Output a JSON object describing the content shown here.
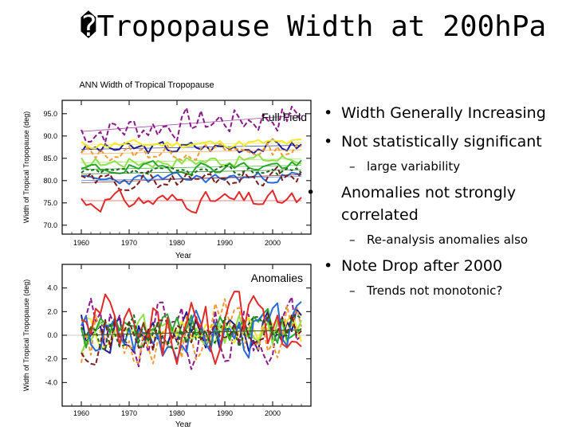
{
  "slide": {
    "title": "�Tropopause Width at 200hPa"
  },
  "bullets": [
    {
      "level": 1,
      "text": "Width Generally Increasing"
    },
    {
      "level": 1,
      "text": "Not statistically significant"
    },
    {
      "level": 2,
      "text": "large variability"
    },
    {
      "level": 1,
      "text": "Anomalies not strongly correlated"
    },
    {
      "level": 2,
      "text": "Re-analysis anomalies also"
    },
    {
      "level": 1,
      "text": "Note Drop after 2000"
    },
    {
      "level": 2,
      "text": "Trends not monotonic?"
    }
  ],
  "bullet_glyph": "•",
  "sub_glyph": "–",
  "chart_data": [
    {
      "type": "line",
      "title": "ANN Width of Tropical Tropopause",
      "panel_label": "Full Field",
      "xlabel": "Year",
      "ylabel": "Width of Tropical Tropopause (deg)",
      "xlim": [
        1956,
        2008
      ],
      "ylim": [
        68.0,
        98.0
      ],
      "xticks": [
        1960,
        1970,
        1980,
        1990,
        2000
      ],
      "yticks": [
        70.0,
        75.0,
        80.0,
        85.0,
        90.0,
        95.0
      ],
      "ytick_labels": [
        "70.0",
        "75.0",
        "80.0",
        "85.0",
        "90.0",
        "95.0"
      ],
      "series": [
        {
          "name": "dark blue",
          "color": "#1c1c8c",
          "dash": "",
          "start": 1960,
          "end": 2006,
          "base": 87.0,
          "trend": 0.02,
          "amp": 1.4,
          "seed": 3
        },
        {
          "name": "purple",
          "color": "#8a1a8a",
          "dash": "6,3",
          "start": 1960,
          "end": 2006,
          "base": 91.0,
          "trend": 0.08,
          "amp": 3.2,
          "seed": 7
        },
        {
          "name": "yellow",
          "color": "#f2ea28",
          "dash": "",
          "start": 1960,
          "end": 2006,
          "base": 88.0,
          "trend": 0.01,
          "amp": 0.9,
          "seed": 11
        },
        {
          "name": "orange",
          "color": "#f49a32",
          "dash": "5,3",
          "start": 1960,
          "end": 2006,
          "base": 86.0,
          "trend": 0.02,
          "amp": 1.6,
          "seed": 13
        },
        {
          "name": "light green",
          "color": "#8fe04a",
          "dash": "",
          "start": 1960,
          "end": 2006,
          "base": 84.0,
          "trend": 0.02,
          "amp": 1.3,
          "seed": 17
        },
        {
          "name": "green",
          "color": "#28a828",
          "dash": "",
          "start": 1960,
          "end": 2006,
          "base": 82.5,
          "trend": 0.02,
          "amp": 1.2,
          "seed": 19
        },
        {
          "name": "blue",
          "color": "#2a6ad8",
          "dash": "",
          "start": 1960,
          "end": 2006,
          "base": 80.0,
          "trend": 0.02,
          "amp": 1.1,
          "seed": 23
        },
        {
          "name": "brown",
          "color": "#7a1c1c",
          "dash": "6,3",
          "start": 1960,
          "end": 2006,
          "base": 79.5,
          "trend": 0.04,
          "amp": 1.8,
          "seed": 29
        },
        {
          "name": "red",
          "color": "#e02a2a",
          "dash": "",
          "start": 1960,
          "end": 2006,
          "base": 75.5,
          "trend": 0.0,
          "amp": 2.0,
          "seed": 31
        },
        {
          "name": "dark green",
          "color": "#1a6a1a",
          "dash": "4,3",
          "start": 1960,
          "end": 2006,
          "base": 81.5,
          "trend": 0.02,
          "amp": 1.0,
          "seed": 37
        }
      ]
    },
    {
      "type": "line",
      "title": "",
      "panel_label": "Anomalies",
      "xlabel": "Year",
      "ylabel": "Width of Tropical Tropopause (deg)",
      "xlim": [
        1956,
        2008
      ],
      "ylim": [
        -6.0,
        6.0
      ],
      "xticks": [
        1960,
        1970,
        1980,
        1990,
        2000
      ],
      "yticks": [
        -4.0,
        -2.0,
        0.0,
        2.0,
        4.0
      ],
      "ytick_labels": [
        "-4.0",
        "-2.0",
        "0.0",
        "2.0",
        "4.0"
      ],
      "series": [
        {
          "name": "dark blue",
          "color": "#1c1c8c",
          "dash": "",
          "start": 1960,
          "end": 2006,
          "base": 0,
          "trend": 0.01,
          "amp": 1.8,
          "seed": 41
        },
        {
          "name": "purple",
          "color": "#8a1a8a",
          "dash": "6,3",
          "start": 1960,
          "end": 2006,
          "base": 0,
          "trend": 0.01,
          "amp": 2.6,
          "seed": 43
        },
        {
          "name": "yellow",
          "color": "#f2ea28",
          "dash": "",
          "start": 1960,
          "end": 2006,
          "base": 0,
          "trend": 0.01,
          "amp": 1.2,
          "seed": 47
        },
        {
          "name": "orange",
          "color": "#f49a32",
          "dash": "5,3",
          "start": 1960,
          "end": 2006,
          "base": 0,
          "trend": 0.01,
          "amp": 2.4,
          "seed": 53
        },
        {
          "name": "light green",
          "color": "#8fe04a",
          "dash": "",
          "start": 1960,
          "end": 2006,
          "base": 0,
          "trend": 0.01,
          "amp": 1.6,
          "seed": 59
        },
        {
          "name": "green",
          "color": "#28a828",
          "dash": "",
          "start": 1960,
          "end": 2006,
          "base": 0,
          "trend": 0.01,
          "amp": 1.5,
          "seed": 61
        },
        {
          "name": "blue",
          "color": "#2a6ad8",
          "dash": "",
          "start": 1960,
          "end": 2006,
          "base": 0,
          "trend": 0.01,
          "amp": 1.9,
          "seed": 67
        },
        {
          "name": "brown",
          "color": "#7a1c1c",
          "dash": "6,3",
          "start": 1960,
          "end": 2006,
          "base": 0,
          "trend": 0.01,
          "amp": 1.7,
          "seed": 71
        },
        {
          "name": "red",
          "color": "#e02a2a",
          "dash": "",
          "start": 1960,
          "end": 2006,
          "base": 0,
          "trend": 0.01,
          "amp": 2.8,
          "seed": 73
        },
        {
          "name": "dark green",
          "color": "#1a6a1a",
          "dash": "4,3",
          "start": 1960,
          "end": 2006,
          "base": 0,
          "trend": 0.01,
          "amp": 1.4,
          "seed": 79
        }
      ]
    }
  ]
}
